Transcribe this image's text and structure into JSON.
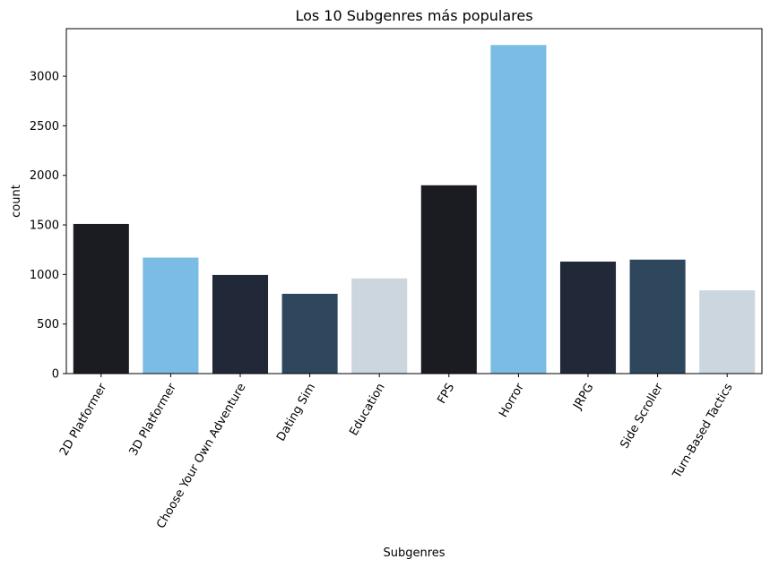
{
  "chart_data": {
    "type": "bar",
    "title": "Los 10 Subgenres más populares",
    "xlabel": "Subgenres",
    "ylabel": "count",
    "categories": [
      "2D Platformer",
      "3D Platformer",
      "Choose Your Own Adventure",
      "Dating Sim",
      "Education",
      "FPS",
      "Horror",
      "JRPG",
      "Side Scroller",
      "Turn-Based Tactics"
    ],
    "values": [
      1510,
      1170,
      995,
      805,
      960,
      1900,
      3315,
      1130,
      1150,
      840
    ],
    "bar_colors": [
      "#1a1c21",
      "#7abce4",
      "#212838",
      "#2e475d",
      "#ccd6df",
      "#1a1c21",
      "#7abce4",
      "#212838",
      "#2e475d",
      "#ccd6df"
    ],
    "ylim": [
      0,
      3480
    ],
    "yticks": [
      0,
      500,
      1000,
      1500,
      2000,
      2500,
      3000
    ],
    "grid": false,
    "legend": "none"
  }
}
